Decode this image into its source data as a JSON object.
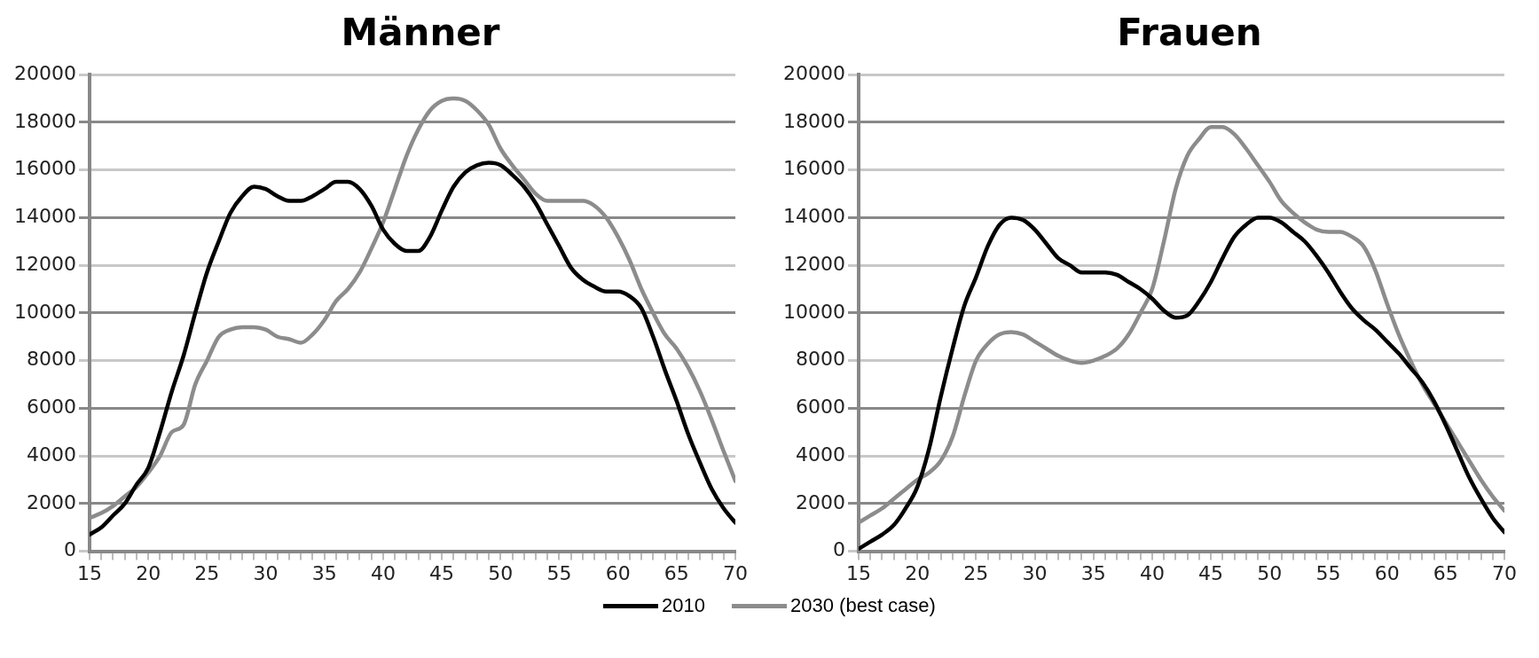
{
  "chart_data": [
    {
      "type": "line",
      "title": "Männer",
      "x": [
        15,
        16,
        17,
        18,
        19,
        20,
        21,
        22,
        23,
        24,
        25,
        26,
        27,
        28,
        29,
        30,
        31,
        32,
        33,
        34,
        35,
        36,
        37,
        38,
        39,
        40,
        41,
        42,
        43,
        44,
        45,
        46,
        47,
        48,
        49,
        50,
        51,
        52,
        53,
        54,
        55,
        56,
        57,
        58,
        59,
        60,
        61,
        62,
        63,
        64,
        65,
        66,
        67,
        68,
        69,
        70
      ],
      "series": [
        {
          "name": "2010",
          "color": "#000000",
          "values": [
            700,
            1000,
            1500,
            2000,
            2800,
            3500,
            5000,
            6700,
            8200,
            10000,
            11700,
            13000,
            14200,
            14900,
            15300,
            15200,
            14900,
            14700,
            14700,
            14900,
            15200,
            15500,
            15500,
            15200,
            14500,
            13500,
            12900,
            12600,
            12600,
            13200,
            14300,
            15300,
            15900,
            16200,
            16300,
            16200,
            15800,
            15300,
            14600,
            13700,
            12800,
            11900,
            11400,
            11100,
            10900,
            10900,
            10700,
            10200,
            9000,
            7600,
            6300,
            4900,
            3700,
            2600,
            1800,
            1200
          ]
        },
        {
          "name": "2030 (best case)",
          "color": "#8c8c8c",
          "values": [
            1400,
            1600,
            1900,
            2300,
            2700,
            3300,
            4000,
            5000,
            5300,
            7000,
            8000,
            9000,
            9300,
            9400,
            9400,
            9300,
            9000,
            8900,
            8750,
            9100,
            9700,
            10500,
            11000,
            11700,
            12700,
            13800,
            15200,
            16600,
            17700,
            18500,
            18900,
            19000,
            18900,
            18500,
            17900,
            16900,
            16200,
            15600,
            15000,
            14700,
            14700,
            14700,
            14700,
            14500,
            14000,
            13200,
            12200,
            11000,
            10000,
            9100,
            8500,
            7700,
            6700,
            5500,
            4200,
            2950
          ]
        }
      ],
      "xlim": [
        15,
        70
      ],
      "xticks": [
        15,
        {
          "value": 16,
          "label": null
        },
        {
          "value": 17,
          "label": null
        },
        {
          "value": 18,
          "label": null
        },
        {
          "value": 19,
          "label": null
        },
        20,
        {
          "value": 21,
          "label": null
        },
        {
          "value": 22,
          "label": null
        },
        {
          "value": 23,
          "label": null
        },
        {
          "value": 24,
          "label": null
        },
        25,
        {
          "value": 26,
          "label": null
        },
        {
          "value": 27,
          "label": null
        },
        {
          "value": 28,
          "label": null
        },
        {
          "value": 29,
          "label": null
        },
        30,
        {
          "value": 31,
          "label": null
        },
        {
          "value": 32,
          "label": null
        },
        {
          "value": 33,
          "label": null
        },
        {
          "value": 34,
          "label": null
        },
        35,
        {
          "value": 36,
          "label": null
        },
        {
          "value": 37,
          "label": null
        },
        {
          "value": 38,
          "label": null
        },
        {
          "value": 39,
          "label": null
        },
        40,
        {
          "value": 41,
          "label": null
        },
        {
          "value": 42,
          "label": null
        },
        {
          "value": 43,
          "label": null
        },
        {
          "value": 44,
          "label": null
        },
        45,
        {
          "value": 46,
          "label": null
        },
        {
          "value": 47,
          "label": null
        },
        {
          "value": 48,
          "label": null
        },
        {
          "value": 49,
          "label": null
        },
        50,
        {
          "value": 51,
          "label": null
        },
        {
          "value": 52,
          "label": null
        },
        {
          "value": 53,
          "label": null
        },
        {
          "value": 54,
          "label": null
        },
        55,
        {
          "value": 56,
          "label": null
        },
        {
          "value": 57,
          "label": null
        },
        {
          "value": 58,
          "label": null
        },
        {
          "value": 59,
          "label": null
        },
        60,
        {
          "value": 61,
          "label": null
        },
        {
          "value": 62,
          "label": null
        },
        {
          "value": 63,
          "label": null
        },
        {
          "value": 64,
          "label": null
        },
        65,
        {
          "value": 66,
          "label": null
        },
        {
          "value": 67,
          "label": null
        },
        {
          "value": 68,
          "label": null
        },
        {
          "value": 69,
          "label": null
        },
        70
      ],
      "ylim": [
        0,
        20000
      ],
      "yticks": [
        0,
        2000,
        4000,
        6000,
        8000,
        10000,
        12000,
        14000,
        16000,
        18000,
        20000
      ],
      "grid": "y",
      "legend": "bottom",
      "marker": "none",
      "line_style": "solid"
    },
    {
      "type": "line",
      "title": "Frauen",
      "x": [
        15,
        16,
        17,
        18,
        19,
        20,
        21,
        22,
        23,
        24,
        25,
        26,
        27,
        28,
        29,
        30,
        31,
        32,
        33,
        34,
        35,
        36,
        37,
        38,
        39,
        40,
        41,
        42,
        43,
        44,
        45,
        46,
        47,
        48,
        49,
        50,
        51,
        52,
        53,
        54,
        55,
        56,
        57,
        58,
        59,
        60,
        61,
        62,
        63,
        64,
        65,
        66,
        67,
        68,
        69,
        70
      ],
      "series": [
        {
          "name": "2010",
          "color": "#000000",
          "values": [
            100,
            400,
            700,
            1100,
            1800,
            2700,
            4300,
            6500,
            8500,
            10300,
            11500,
            12800,
            13700,
            14000,
            13900,
            13500,
            12900,
            12300,
            12000,
            11700,
            11700,
            11700,
            11600,
            11300,
            11000,
            10600,
            10100,
            9800,
            9900,
            10500,
            11300,
            12300,
            13200,
            13700,
            14000,
            14000,
            13800,
            13400,
            13000,
            12400,
            11700,
            10900,
            10200,
            9700,
            9300,
            8800,
            8300,
            7700,
            7100,
            6300,
            5300,
            4200,
            3100,
            2200,
            1400,
            800
          ]
        },
        {
          "name": "2030 (best case)",
          "color": "#8c8c8c",
          "values": [
            1200,
            1500,
            1800,
            2200,
            2600,
            3000,
            3300,
            3800,
            4800,
            6500,
            8000,
            8700,
            9100,
            9200,
            9100,
            8800,
            8500,
            8200,
            8000,
            7900,
            8000,
            8200,
            8500,
            9100,
            10000,
            11000,
            13000,
            15200,
            16600,
            17300,
            17800,
            17800,
            17500,
            16900,
            16200,
            15500,
            14700,
            14200,
            13800,
            13500,
            13400,
            13400,
            13200,
            12800,
            11800,
            10400,
            9100,
            8000,
            7000,
            6200,
            5400,
            4600,
            3800,
            3000,
            2300,
            1700
          ]
        }
      ],
      "xlim": [
        15,
        70
      ],
      "xticks": [
        15,
        {
          "value": 16,
          "label": null
        },
        {
          "value": 17,
          "label": null
        },
        {
          "value": 18,
          "label": null
        },
        {
          "value": 19,
          "label": null
        },
        20,
        {
          "value": 21,
          "label": null
        },
        {
          "value": 22,
          "label": null
        },
        {
          "value": 23,
          "label": null
        },
        {
          "value": 24,
          "label": null
        },
        25,
        {
          "value": 26,
          "label": null
        },
        {
          "value": 27,
          "label": null
        },
        {
          "value": 28,
          "label": null
        },
        {
          "value": 29,
          "label": null
        },
        30,
        {
          "value": 31,
          "label": null
        },
        {
          "value": 32,
          "label": null
        },
        {
          "value": 33,
          "label": null
        },
        {
          "value": 34,
          "label": null
        },
        35,
        {
          "value": 36,
          "label": null
        },
        {
          "value": 37,
          "label": null
        },
        {
          "value": 38,
          "label": null
        },
        {
          "value": 39,
          "label": null
        },
        40,
        {
          "value": 41,
          "label": null
        },
        {
          "value": 42,
          "label": null
        },
        {
          "value": 43,
          "label": null
        },
        {
          "value": 44,
          "label": null
        },
        45,
        {
          "value": 46,
          "label": null
        },
        {
          "value": 47,
          "label": null
        },
        {
          "value": 48,
          "label": null
        },
        {
          "value": 49,
          "label": null
        },
        50,
        {
          "value": 51,
          "label": null
        },
        {
          "value": 52,
          "label": null
        },
        {
          "value": 53,
          "label": null
        },
        {
          "value": 54,
          "label": null
        },
        55,
        {
          "value": 56,
          "label": null
        },
        {
          "value": 57,
          "label": null
        },
        {
          "value": 58,
          "label": null
        },
        {
          "value": 59,
          "label": null
        },
        60,
        {
          "value": 61,
          "label": null
        },
        {
          "value": 62,
          "label": null
        },
        {
          "value": 63,
          "label": null
        },
        {
          "value": 64,
          "label": null
        },
        65,
        {
          "value": 66,
          "label": null
        },
        {
          "value": 67,
          "label": null
        },
        {
          "value": 68,
          "label": null
        },
        {
          "value": 69,
          "label": null
        },
        70
      ],
      "ylim": [
        0,
        20000
      ],
      "yticks": [
        0,
        2000,
        4000,
        6000,
        8000,
        10000,
        12000,
        14000,
        16000,
        18000,
        20000
      ],
      "grid": "y",
      "legend": "bottom",
      "marker": "none",
      "line_style": "solid"
    }
  ]
}
